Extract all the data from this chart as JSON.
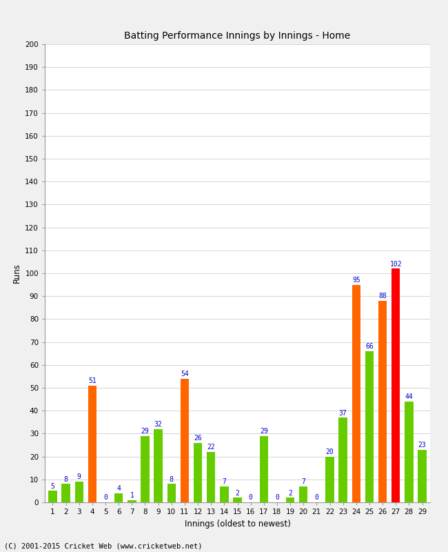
{
  "innings": [
    1,
    2,
    3,
    4,
    5,
    6,
    7,
    8,
    9,
    10,
    11,
    12,
    13,
    14,
    15,
    16,
    17,
    18,
    19,
    20,
    21,
    22,
    23,
    24,
    25,
    26,
    27,
    28,
    29
  ],
  "values": [
    5,
    8,
    9,
    51,
    0,
    4,
    1,
    29,
    32,
    8,
    54,
    26,
    22,
    7,
    2,
    0,
    29,
    0,
    2,
    7,
    0,
    20,
    37,
    95,
    66,
    88,
    102,
    44,
    23
  ],
  "colors": [
    "#66cc00",
    "#66cc00",
    "#66cc00",
    "#ff6600",
    "#66cc00",
    "#66cc00",
    "#66cc00",
    "#66cc00",
    "#66cc00",
    "#66cc00",
    "#ff6600",
    "#66cc00",
    "#66cc00",
    "#66cc00",
    "#66cc00",
    "#66cc00",
    "#66cc00",
    "#66cc00",
    "#66cc00",
    "#66cc00",
    "#66cc00",
    "#66cc00",
    "#66cc00",
    "#ff6600",
    "#66cc00",
    "#ff6600",
    "#ff0000",
    "#66cc00",
    "#66cc00"
  ],
  "title": "Batting Performance Innings by Innings - Home",
  "xlabel": "Innings (oldest to newest)",
  "ylabel": "Runs",
  "ylim": [
    0,
    200
  ],
  "yticks": [
    0,
    10,
    20,
    30,
    40,
    50,
    60,
    70,
    80,
    90,
    100,
    110,
    120,
    130,
    140,
    150,
    160,
    170,
    180,
    190,
    200
  ],
  "label_color": "#0000cc",
  "bg_color": "#f0f0f0",
  "plot_bg_color": "#ffffff",
  "footer": "(C) 2001-2015 Cricket Web (www.cricketweb.net)",
  "title_fontsize": 10,
  "label_fontsize": 7,
  "axis_fontsize": 7.5,
  "footer_fontsize": 7.5
}
